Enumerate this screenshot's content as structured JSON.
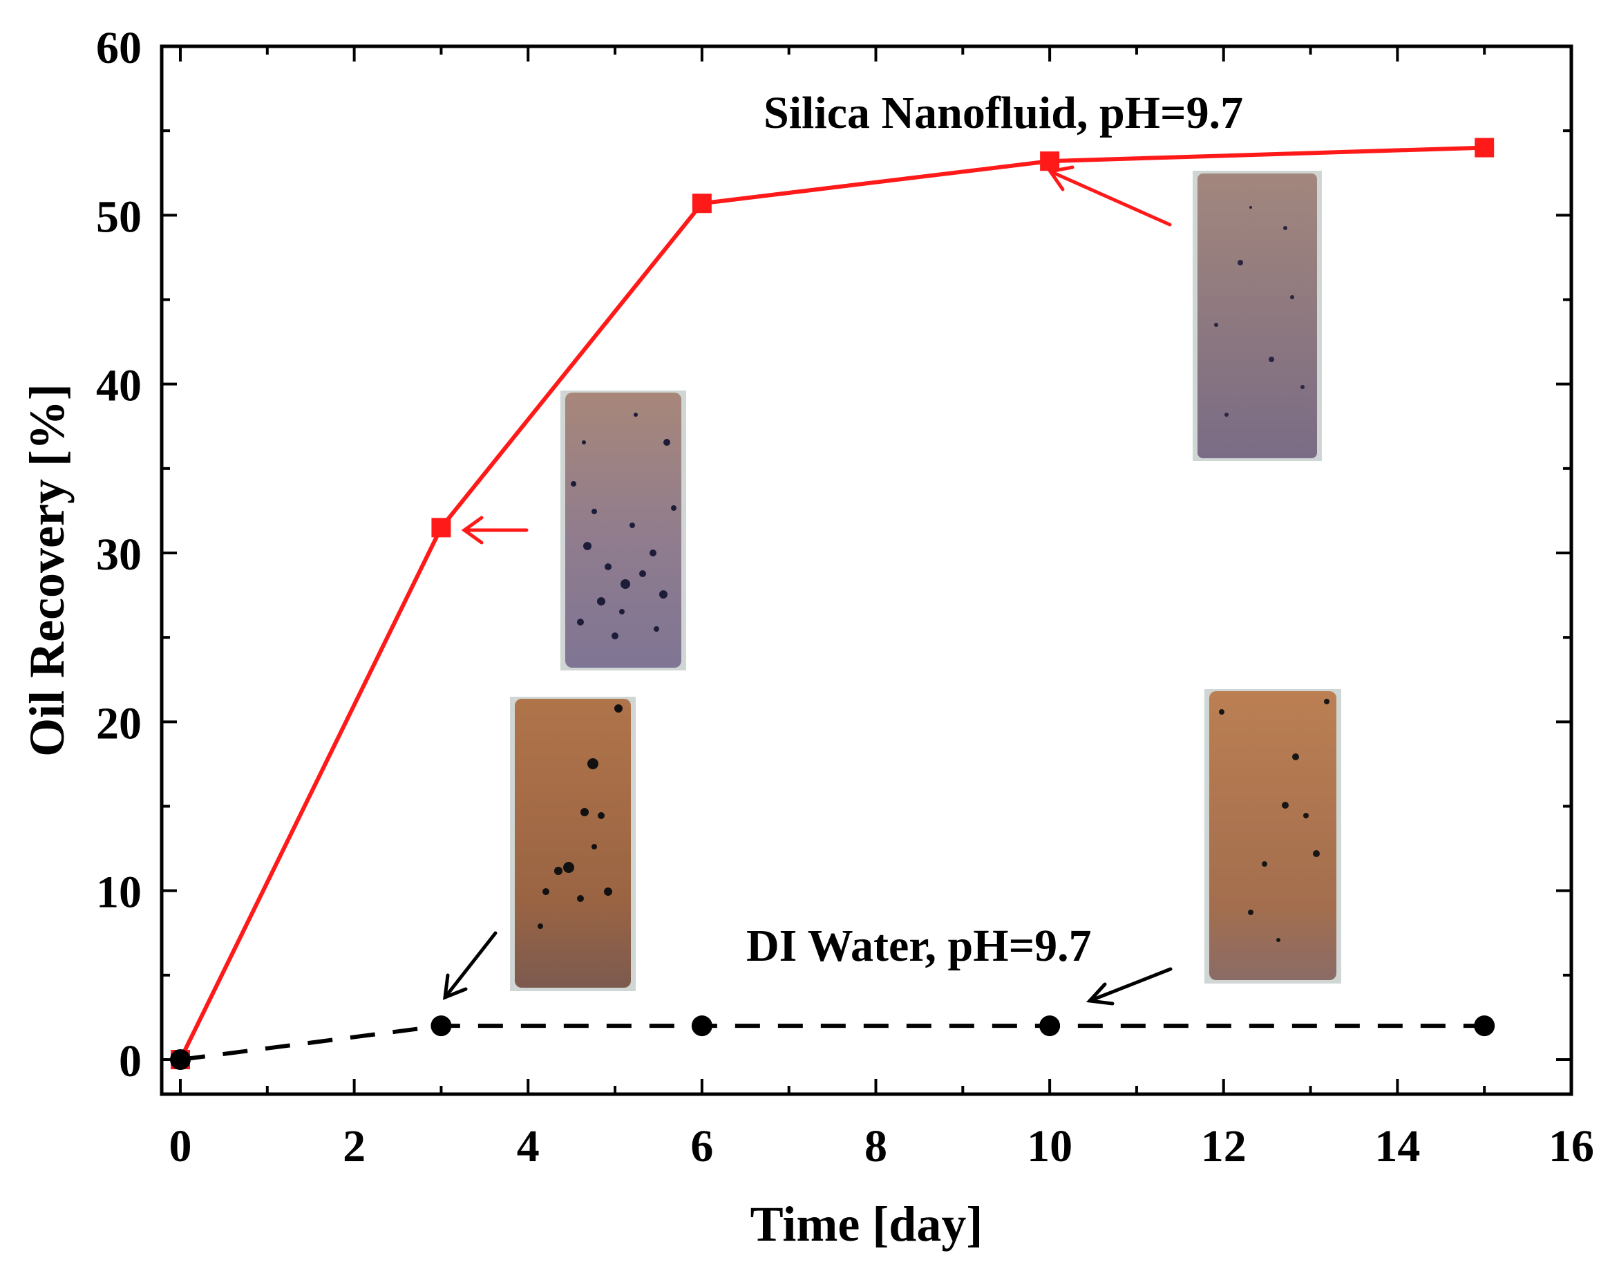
{
  "chart_data": {
    "type": "line",
    "title": "",
    "xlabel": "Time [day]",
    "ylabel": "Oil Recovery [%]",
    "xlim": [
      0,
      16
    ],
    "ylim": [
      0,
      60
    ],
    "x_ticks": [
      0,
      2,
      4,
      6,
      8,
      10,
      12,
      14,
      16
    ],
    "y_ticks": [
      0,
      10,
      20,
      30,
      40,
      50,
      60
    ],
    "x_tick_labels": [
      "0",
      "2",
      "4",
      "6",
      "8",
      "10",
      "12",
      "14",
      "16"
    ],
    "y_tick_labels": [
      "0",
      "10",
      "20",
      "30",
      "40",
      "50",
      "60"
    ],
    "grid": false,
    "series": [
      {
        "name": "Silica Nanofluid, pH=9.7",
        "color": "#ff1a1a",
        "marker": "square",
        "line_style": "solid",
        "x": [
          0,
          3,
          6,
          10,
          15
        ],
        "values": [
          0,
          31.5,
          50.7,
          53.2,
          54
        ]
      },
      {
        "name": "DI Water, pH=9.7",
        "color": "#000000",
        "marker": "circle",
        "line_style": "dashed",
        "x": [
          0,
          3,
          6,
          10,
          15
        ],
        "values": [
          0,
          2,
          2,
          2,
          2
        ]
      }
    ],
    "annotations": [
      {
        "text": "Silica Nanofluid, pH=9.7",
        "series": 0
      },
      {
        "text": "DI Water, pH=9.7",
        "series": 1
      }
    ],
    "inset_images": [
      {
        "name": "nanofluid-core-day-3",
        "depicts": "sandstone core with dark oil droplets",
        "points_to": {
          "series": 0,
          "x": 3
        }
      },
      {
        "name": "nanofluid-core-day-10",
        "depicts": "sandstone core with few oil droplets",
        "points_to": {
          "series": 0,
          "x": 10
        }
      },
      {
        "name": "di-water-core-day-3",
        "depicts": "sandstone core with oil droplets",
        "points_to": {
          "series": 1,
          "x": 3
        }
      },
      {
        "name": "di-water-core-day-10",
        "depicts": "sandstone core with oil droplets",
        "points_to": {
          "series": 1,
          "x": 10
        }
      }
    ]
  }
}
